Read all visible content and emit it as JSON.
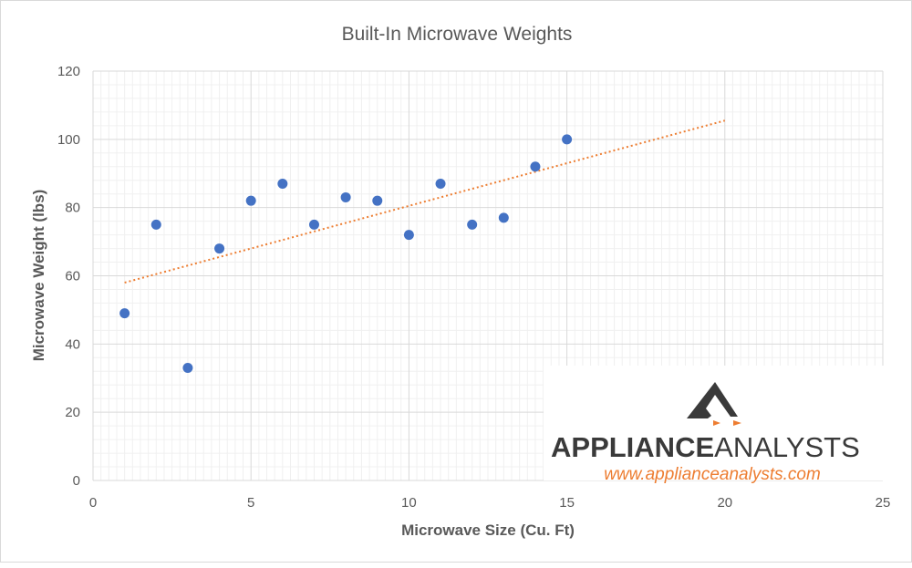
{
  "chart_data": {
    "type": "scatter",
    "title": "Built-In Microwave Weights",
    "xlabel": "Microwave Size (Cu. Ft)",
    "ylabel": "Microwave Weight (lbs)",
    "xlim": [
      0,
      25
    ],
    "ylim": [
      0,
      120
    ],
    "xticks": [
      0,
      5,
      10,
      15,
      20,
      25
    ],
    "yticks": [
      0,
      20,
      40,
      60,
      80,
      100,
      120
    ],
    "grid": "major and minor",
    "points": [
      {
        "x": 1,
        "y": 49
      },
      {
        "x": 2,
        "y": 75
      },
      {
        "x": 3,
        "y": 33
      },
      {
        "x": 4,
        "y": 68
      },
      {
        "x": 5,
        "y": 82
      },
      {
        "x": 6,
        "y": 87
      },
      {
        "x": 7,
        "y": 75
      },
      {
        "x": 8,
        "y": 83
      },
      {
        "x": 9,
        "y": 82
      },
      {
        "x": 10,
        "y": 72
      },
      {
        "x": 11,
        "y": 87
      },
      {
        "x": 12,
        "y": 75
      },
      {
        "x": 13,
        "y": 77
      },
      {
        "x": 14,
        "y": 92
      },
      {
        "x": 15,
        "y": 100
      }
    ],
    "trendline": {
      "type": "linear",
      "x": [
        1,
        20
      ],
      "y": [
        58,
        105.5
      ],
      "style": "dotted"
    },
    "colors": {
      "points": "#4472c4",
      "trendline": "#ed7d31",
      "grid_major": "#d9d9d9",
      "grid_minor": "#f0f0f0"
    }
  },
  "watermark": {
    "brand_bold": "APPLIANCE",
    "brand_light": "ANALYSTS",
    "url": "www.applianceanalysts.com",
    "colors": {
      "dark": "#3a3a3a",
      "accent": "#ed7d31"
    }
  }
}
